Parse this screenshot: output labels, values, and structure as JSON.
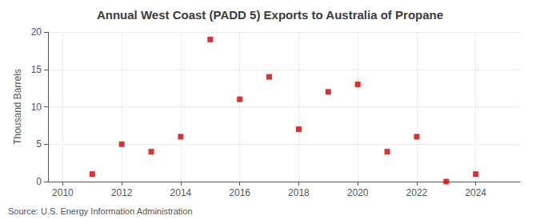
{
  "chart_data": {
    "type": "scatter",
    "title": "Annual West Coast (PADD 5) Exports to Australia of Propane",
    "ylabel": "Thousand Barrels",
    "annotations": [
      "Source: U.S. Energy Information Administration"
    ],
    "x": [
      2011,
      2012,
      2013,
      2014,
      2015,
      2016,
      2017,
      2018,
      2019,
      2020,
      2021,
      2022,
      2023,
      2024
    ],
    "values": [
      1,
      5,
      4,
      6,
      19,
      11,
      14,
      7,
      12,
      13,
      4,
      6,
      0,
      1
    ],
    "color": "#cc0000",
    "marker": "square",
    "xlim": [
      2009.5,
      2025.5
    ],
    "ylim": [
      0,
      20
    ],
    "xticks": [
      2010,
      2012,
      2014,
      2016,
      2018,
      2020,
      2022,
      2024
    ],
    "yticks": [
      0,
      5,
      10,
      15,
      20
    ],
    "grid": true
  }
}
